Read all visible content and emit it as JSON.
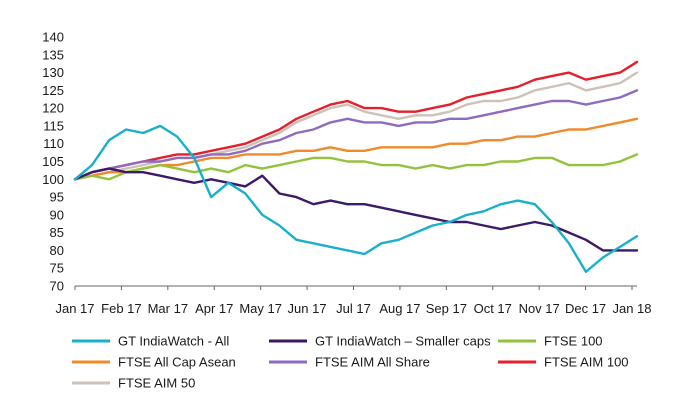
{
  "chart_data": {
    "type": "line",
    "title": "",
    "xlabel": "",
    "ylabel": "",
    "ylim": [
      70,
      140
    ],
    "yticks": [
      70,
      75,
      80,
      85,
      90,
      95,
      100,
      105,
      110,
      115,
      120,
      125,
      130,
      135,
      140
    ],
    "x_tick_labels": [
      "Jan 17",
      "Feb 17",
      "Mar 17",
      "Apr 17",
      "May 17",
      "Jun 17",
      "Jul 17",
      "Aug 17",
      "Sep 17",
      "Oct 17",
      "Nov 17",
      "Dec 17",
      "Jan 18"
    ],
    "grid": false,
    "legend_position": "bottom",
    "series": [
      {
        "name": "GT IndiaWatch - All",
        "color": "#1ab0cc",
        "values": [
          100,
          104,
          111,
          114,
          113,
          115,
          112,
          106,
          95,
          99,
          96,
          90,
          87,
          83,
          82,
          81,
          80,
          79,
          82,
          83,
          85,
          87,
          88,
          90,
          91,
          93,
          94,
          93,
          88,
          82,
          74,
          78,
          81,
          84
        ]
      },
      {
        "name": "GT IndiaWatch – Smaller caps",
        "color": "#3d1a68",
        "values": [
          100,
          102,
          103,
          102,
          102,
          101,
          100,
          99,
          100,
          99,
          98,
          101,
          96,
          95,
          93,
          94,
          93,
          93,
          92,
          91,
          90,
          89,
          88,
          88,
          87,
          86,
          87,
          88,
          87,
          85,
          83,
          80,
          80,
          80
        ]
      },
      {
        "name": "FTSE 100",
        "color": "#95c23d",
        "values": [
          100,
          101,
          100,
          102,
          103,
          104,
          103,
          102,
          103,
          102,
          104,
          103,
          104,
          105,
          106,
          106,
          105,
          105,
          104,
          104,
          103,
          104,
          103,
          104,
          104,
          105,
          105,
          106,
          106,
          104,
          104,
          104,
          105,
          107
        ]
      },
      {
        "name": "FTSE All Cap Asean",
        "color": "#f08a2a",
        "values": [
          100,
          101,
          102,
          102,
          103,
          104,
          104,
          105,
          106,
          106,
          107,
          107,
          107,
          108,
          108,
          109,
          108,
          108,
          109,
          109,
          109,
          109,
          110,
          110,
          111,
          111,
          112,
          112,
          113,
          114,
          114,
          115,
          116,
          117
        ]
      },
      {
        "name": "FTSE AIM All Share",
        "color": "#8e6bbf",
        "values": [
          100,
          102,
          103,
          104,
          105,
          105,
          106,
          106,
          107,
          107,
          108,
          110,
          111,
          113,
          114,
          116,
          117,
          116,
          116,
          115,
          116,
          116,
          117,
          117,
          118,
          119,
          120,
          121,
          122,
          122,
          121,
          122,
          123,
          125
        ]
      },
      {
        "name": "FTSE AIM 100",
        "color": "#e51f2b",
        "values": [
          100,
          102,
          103,
          104,
          105,
          106,
          107,
          107,
          108,
          109,
          110,
          112,
          114,
          117,
          119,
          121,
          122,
          120,
          120,
          119,
          119,
          120,
          121,
          123,
          124,
          125,
          126,
          128,
          129,
          130,
          128,
          129,
          130,
          133
        ]
      },
      {
        "name": "FTSE AIM 50",
        "color": "#cec2b8",
        "values": [
          100,
          101,
          102,
          103,
          104,
          105,
          106,
          106,
          107,
          108,
          109,
          111,
          113,
          116,
          118,
          120,
          121,
          119,
          118,
          117,
          118,
          118,
          119,
          121,
          122,
          122,
          123,
          125,
          126,
          127,
          125,
          126,
          127,
          130
        ]
      }
    ]
  }
}
